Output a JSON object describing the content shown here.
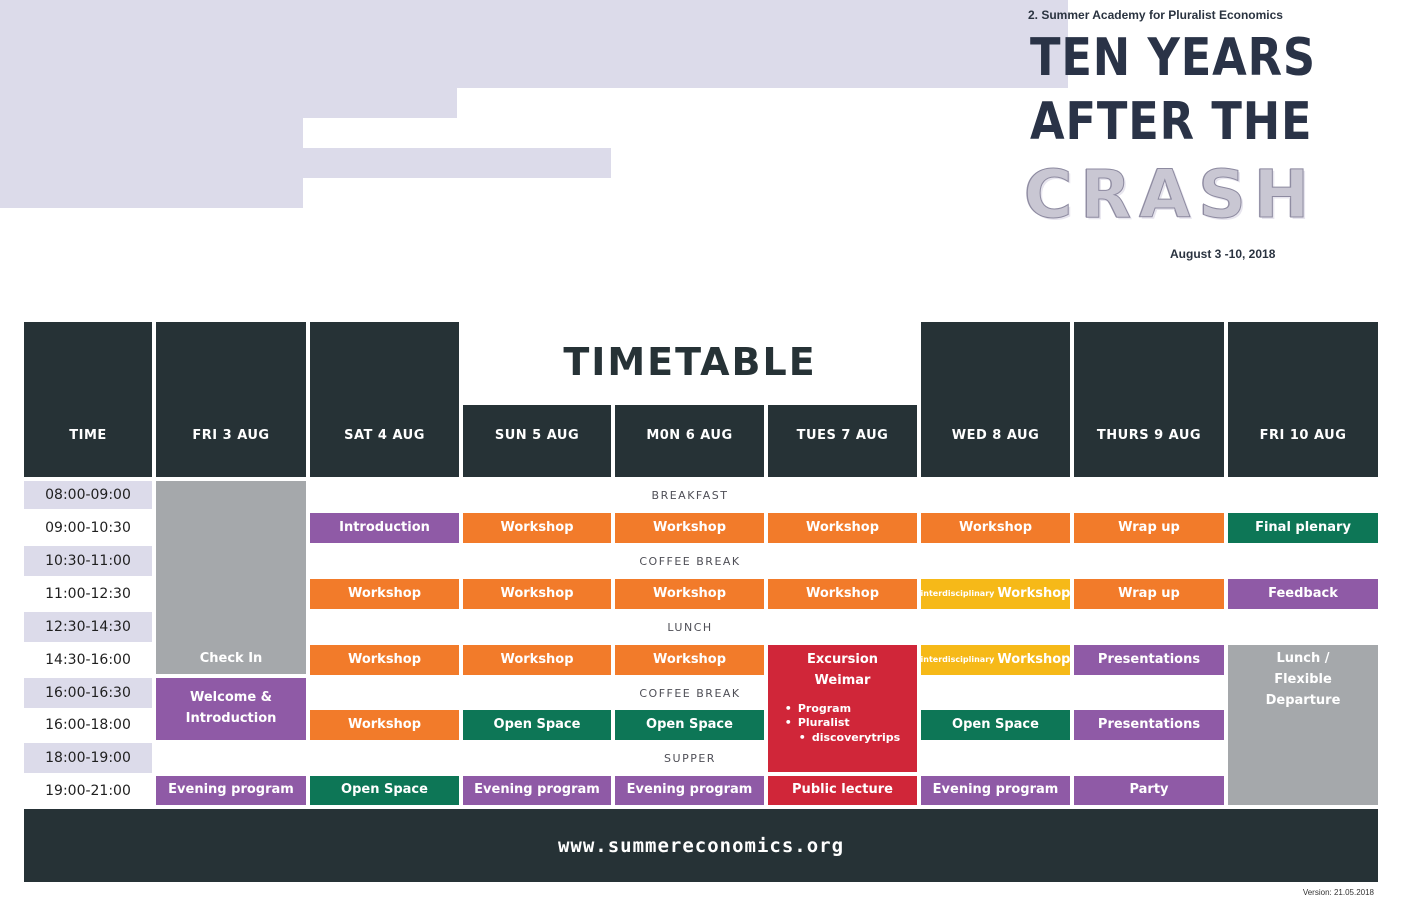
{
  "header": {
    "academy": "2. Summer Academy for Pluralist Economics",
    "title_line1": "TEN YEARS",
    "title_line2": "AFTER THE",
    "title_line3": "CRASH",
    "dates": "August 3 -10, 2018"
  },
  "timetable_title": "TIMETABLE",
  "columns": {
    "time": "TIME",
    "fri3": "FRI 3 AUG",
    "sat4": "SAT 4 AUG",
    "sun5": "SUN 5 AUG",
    "mon6": "M0N 6 AUG",
    "tue7": "TUES 7 AUG",
    "wed8": "WED 8 AUG",
    "thu9": "THURS 9 AUG",
    "fri10": "FRI 10 AUG"
  },
  "times": [
    "08:00-09:00",
    "09:00-10:30",
    "10:30-11:00",
    "11:00-12:30",
    "12:30-14:30",
    "14:30-16:00",
    "16:00-16:30",
    "16:00-18:00",
    "18:00-19:00",
    "19:00-21:00"
  ],
  "bands": {
    "breakfast": "BREAKFAST",
    "coffee": "COFFEE BREAK",
    "lunch": "LUNCH",
    "coffee2": "COFFEE BREAK",
    "supper": "SUPPER"
  },
  "events": {
    "check_in": "Check In",
    "welcome_l1": "Welcome &",
    "welcome_l2": "Introduction",
    "introduction": "Introduction",
    "workshop": "Workshop",
    "wrap_up": "Wrap up",
    "final_plenary": "Final plenary",
    "interdisciplinary": "interdisciplinary",
    "feedback": "Feedback",
    "excursion_l1": "Excursion",
    "excursion_l2": "Weimar",
    "excursion_item1": "Program",
    "excursion_item2": "Pluralist",
    "excursion_item3": "discoverytrips",
    "presentations": "Presentations",
    "lunch_l1": "Lunch /",
    "lunch_l2": "Flexible",
    "lunch_l3": "Departure",
    "open_space": "Open Space",
    "evening_program": "Evening program",
    "public_lecture": "Public lecture",
    "party": "Party"
  },
  "footer": "www.summereconomics.org",
  "version": "Version: 21.05.2018",
  "colors": {
    "dark": "#263236",
    "band": "#dcdbea",
    "purple": "#8f5aa6",
    "orange": "#f27b2a",
    "green": "#0d7656",
    "yellow": "#f6b918",
    "red": "#d02639",
    "grey": "#a5a8ab"
  }
}
